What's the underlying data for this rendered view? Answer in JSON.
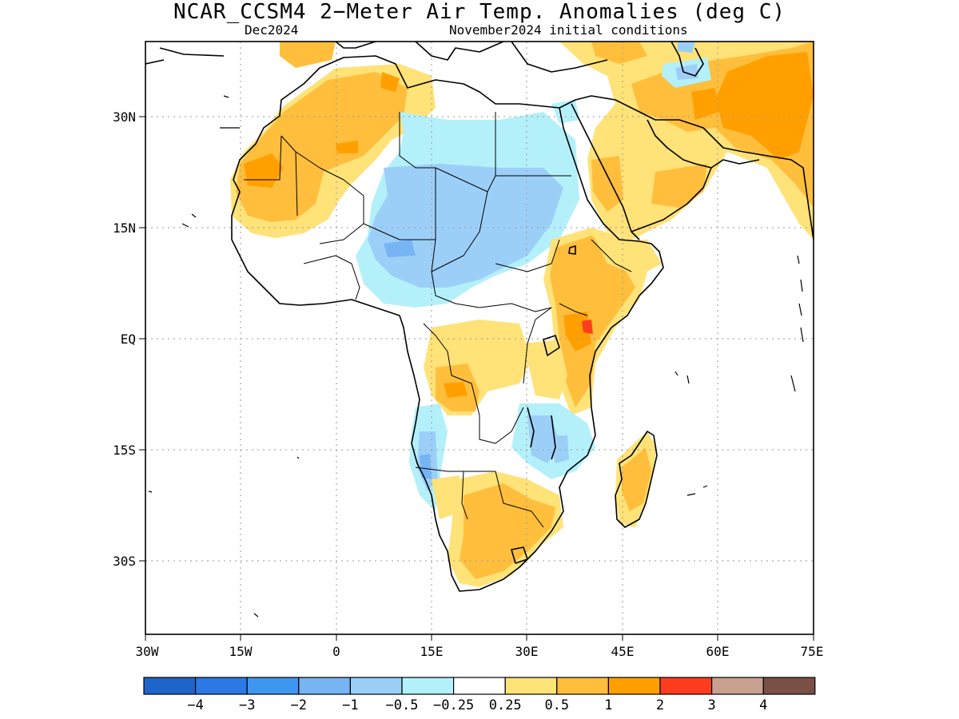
{
  "title": "NCAR_CCSM4 2−Meter Air Temp. Anomalies (deg C)",
  "subtitle_left": "Dec2024",
  "subtitle_right": "November2024 initial conditions",
  "map": {
    "lat_labels": [
      "30N",
      "15N",
      "EQ",
      "15S",
      "30S"
    ],
    "lon_labels": [
      "30W",
      "15W",
      "0",
      "15E",
      "30E",
      "45E",
      "60E",
      "75E"
    ],
    "grid": "dotted"
  },
  "colorbar": {
    "colors": [
      "#1f64c8",
      "#2b78e6",
      "#3f96f0",
      "#76b4f4",
      "#9ccff8",
      "#b4f0fa",
      "#ffffff",
      "#ffe278",
      "#ffbe3c",
      "#ffa000",
      "#ff3c1e",
      "#c8a090",
      "#7a5046"
    ],
    "labels": [
      "−4",
      "−3",
      "−2",
      "−1",
      "−0.5",
      "−0.25",
      "0.25",
      "0.5",
      "1",
      "2",
      "3",
      "4"
    ]
  }
}
